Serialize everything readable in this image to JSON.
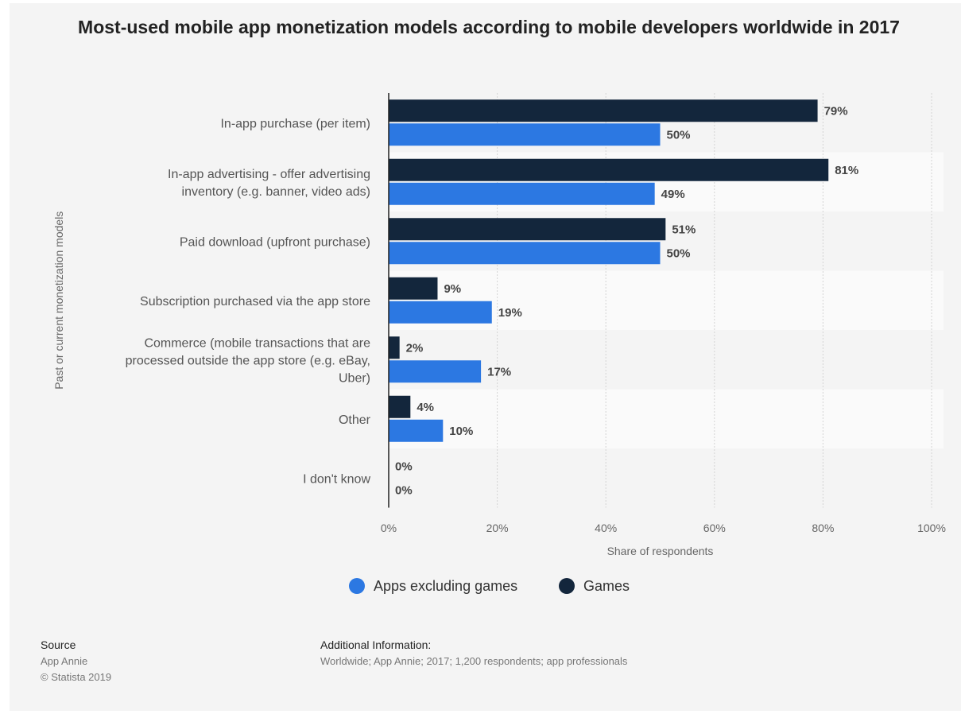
{
  "chart_data": {
    "type": "bar",
    "orientation": "horizontal",
    "title": "Most-used mobile app monetization models according to mobile developers worldwide in 2017",
    "xlabel": "Share of respondents",
    "ylabel": "Past or current monetization models",
    "xlim": [
      0,
      100
    ],
    "xticks": [
      0,
      20,
      40,
      60,
      80,
      100
    ],
    "xtick_labels": [
      "0%",
      "20%",
      "40%",
      "60%",
      "80%",
      "100%"
    ],
    "grid": true,
    "legend_position": "bottom",
    "categories": [
      [
        "In-app purchase (per item)"
      ],
      [
        "In-app advertising - offer advertising",
        "inventory (e.g. banner, video ads)"
      ],
      [
        "Paid download (upfront purchase)"
      ],
      [
        "Subscription purchased via the app store"
      ],
      [
        "Commerce (mobile transactions that are",
        "processed outside the app store (e.g. eBay,",
        "Uber)"
      ],
      [
        "Other"
      ],
      [
        "I don't know"
      ]
    ],
    "series": [
      {
        "name": "Games",
        "color": "#13263c",
        "values": [
          79,
          81,
          51,
          9,
          2,
          4,
          0
        ]
      },
      {
        "name": "Apps excluding games",
        "color": "#2c78e2",
        "values": [
          50,
          49,
          50,
          19,
          17,
          10,
          0
        ]
      }
    ],
    "legend_order": [
      "Apps excluding games",
      "Games"
    ]
  },
  "footer": {
    "source_heading": "Source",
    "source_lines": [
      "App Annie",
      "© Statista 2019"
    ],
    "additional_heading": "Additional Information:",
    "additional_text": "Worldwide; App Annie; 2017; 1,200 respondents; app professionals"
  }
}
